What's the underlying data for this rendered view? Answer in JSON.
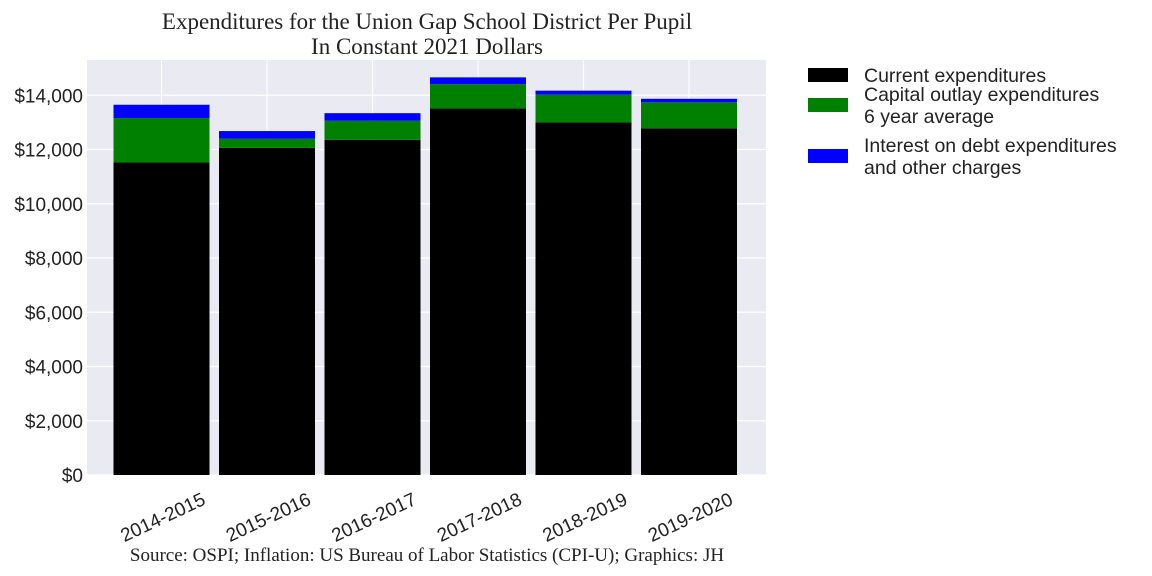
{
  "chart_data": {
    "type": "bar",
    "stacked": true,
    "title": "Expenditures for the Union Gap School District Per Pupil",
    "subtitle": "In Constant 2021 Dollars",
    "source": "Source: OSPI; Inflation: US Bureau of Labor Statistics (CPI-U); Graphics: JH",
    "xlabel": "",
    "ylabel": "",
    "ylim": [
      0,
      15300
    ],
    "yticks": [
      0,
      2000,
      4000,
      6000,
      8000,
      10000,
      12000,
      14000
    ],
    "ytick_labels": [
      "$0",
      "$2,000",
      "$4,000",
      "$6,000",
      "$8,000",
      "$10,000",
      "$12,000",
      "$14,000"
    ],
    "grid": true,
    "legend_position": "outside right, top",
    "categories": [
      "2014-2015",
      "2015-2016",
      "2016-2017",
      "2017-2018",
      "2018-2019",
      "2019-2020"
    ],
    "series": [
      {
        "name": "Current expenditures",
        "color": "#000000",
        "values": [
          11520,
          12060,
          12360,
          13510,
          13000,
          12780
        ]
      },
      {
        "name": "Capital outlay expenditures\n6 year average",
        "color": "#008000",
        "values": [
          1640,
          340,
          700,
          900,
          1020,
          960
        ]
      },
      {
        "name": "Interest on debt expenditures\nand other charges",
        "color": "#0000ff",
        "values": [
          490,
          280,
          280,
          250,
          150,
          130
        ]
      }
    ]
  },
  "colors": {
    "plot_background": "#eaeaf2",
    "grid": "#ffffff"
  }
}
